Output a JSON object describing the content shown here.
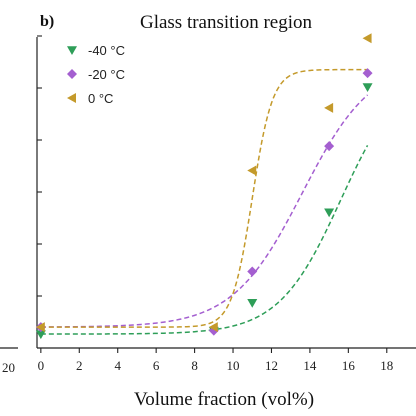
{
  "chart_data": {
    "type": "scatter",
    "panel_label": "b)",
    "left_panel_edge_tick": "20",
    "title": "Glass transition region",
    "xlabel": "Volume fraction (vol%)",
    "ylabel": "",
    "xlim": [
      -0.2,
      19.0
    ],
    "ylim": [
      0,
      1
    ],
    "x_ticks": [
      0,
      2,
      4,
      6,
      8,
      10,
      12,
      14,
      16,
      18
    ],
    "x_tick_labels": [
      "0",
      "2",
      "4",
      "6",
      "8",
      "10",
      "12",
      "14",
      "16",
      "18"
    ],
    "y_tick_count": 6,
    "y_tick_labels_visible": false,
    "grid": false,
    "legend_position": "top-left",
    "series": [
      {
        "name": "-40 °C",
        "color": "#2e9e58",
        "marker": "triangle-down",
        "x": [
          0,
          9,
          11,
          15,
          17
        ],
        "y": [
          0.04,
          0.05,
          0.13,
          0.39,
          0.75
        ],
        "fit_curve": "dashed"
      },
      {
        "name": "-20 °C",
        "color": "#a45fd0",
        "marker": "diamond",
        "x": [
          0,
          9,
          11,
          15,
          17
        ],
        "y": [
          0.06,
          0.05,
          0.22,
          0.58,
          0.79
        ],
        "fit_curve": "dashed"
      },
      {
        "name": "0 °C",
        "color": "#c49a2b",
        "marker": "triangle-left",
        "x": [
          0,
          9,
          11,
          15,
          17
        ],
        "y": [
          0.06,
          0.06,
          0.51,
          0.69,
          0.89
        ],
        "fit_curve": "dashed"
      }
    ]
  }
}
